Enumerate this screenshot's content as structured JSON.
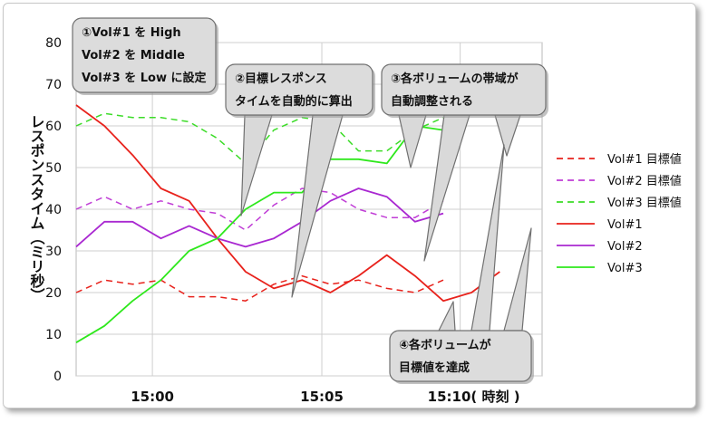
{
  "chart_data": {
    "type": "line",
    "ylabel": "レスポンスタイム（ミリ秒）",
    "ylim": [
      0,
      80
    ],
    "yticks": [
      "0",
      "10",
      "20",
      "30",
      "40",
      "50",
      "60",
      "70",
      "80"
    ],
    "xticks": [
      "15:00",
      "15:05",
      "15:10( 時刻 )"
    ],
    "x_tick_positions": [
      2.7,
      8.7,
      13.6
    ],
    "xlim": [
      0,
      16.5
    ],
    "grid": true,
    "legend_position": "right",
    "x": [
      0,
      1,
      2,
      3,
      4,
      5,
      6,
      7,
      8,
      9,
      10,
      11,
      12,
      13,
      14,
      15,
      16
    ],
    "series": [
      {
        "name": "Vol#1 目標値",
        "style": "dashed",
        "color": "#e8221c",
        "values": [
          20,
          23,
          22,
          23,
          19,
          19,
          18,
          22,
          24,
          22,
          23,
          21,
          20,
          23,
          null,
          null,
          null
        ]
      },
      {
        "name": "Vol#2 目標値",
        "style": "dashed",
        "color": "#c03dd6",
        "values": [
          40,
          43,
          40,
          42,
          40,
          39,
          35,
          41,
          45,
          44,
          40,
          38,
          38,
          42,
          null,
          null,
          null
        ]
      },
      {
        "name": "Vol#3 目標値",
        "style": "dashed",
        "color": "#3cdc28",
        "values": [
          60,
          63,
          62,
          62,
          61,
          57,
          51,
          59,
          62,
          61,
          54,
          54,
          59,
          62,
          null,
          null,
          null
        ]
      },
      {
        "name": "Vol#1",
        "style": "solid",
        "color": "#e8221c",
        "values": [
          65,
          60,
          53,
          45,
          42,
          33,
          25,
          21,
          23,
          20,
          24,
          29,
          24,
          18,
          20,
          25,
          null
        ]
      },
      {
        "name": "Vol#2",
        "style": "solid",
        "color": "#a928d1",
        "values": [
          31,
          37,
          37,
          33,
          36,
          33,
          31,
          33,
          37,
          42,
          45,
          43,
          37,
          39,
          null,
          null,
          null
        ]
      },
      {
        "name": "Vol#3",
        "style": "solid",
        "color": "#2ee81c",
        "values": [
          8,
          12,
          18,
          23,
          30,
          33,
          40,
          44,
          44,
          52,
          52,
          51,
          60,
          59,
          null,
          null,
          null
        ]
      }
    ],
    "annotations": [
      {
        "lines": [
          "①Vol#1 を High",
          "Vol#2 を Middle",
          "Vol#3 を Low に設定"
        ]
      },
      {
        "lines": [
          "②目標レスポンス",
          "タイムを自動的に算出"
        ]
      },
      {
        "lines": [
          "③各ボリュームの帯域が",
          "自動調整される"
        ]
      },
      {
        "lines": [
          "④各ボリュームが",
          "目標値を達成"
        ]
      }
    ]
  }
}
